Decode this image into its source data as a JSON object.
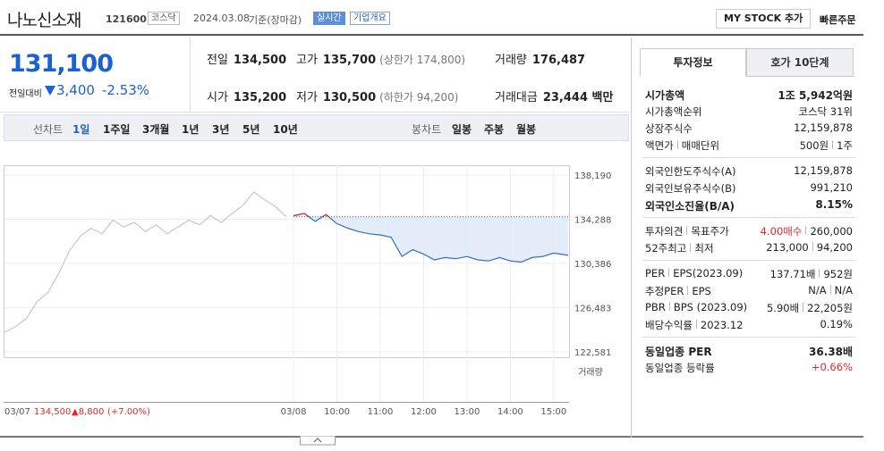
{
  "header": {
    "name": "나노신소재",
    "code": "121600",
    "market": "코스닥",
    "date": "2024.03.08",
    "basis": "기준(장마감)",
    "realtime": "실시간",
    "overview": "기업개요",
    "mystock": "MY STOCK 추가",
    "order": "빠른주문"
  },
  "price": {
    "now": "131,100",
    "change_label": "전일대비",
    "change": "3,400",
    "pct": "-2.53%"
  },
  "summary": [
    {
      "label": "전일",
      "value": "134,500"
    },
    {
      "label": "고가",
      "value": "135,700",
      "note": "(상한가 174,800)"
    },
    {
      "label": "거래량",
      "value": "176,487"
    },
    {
      "label": "시가",
      "value": "135,200"
    },
    {
      "label": "저가",
      "value": "130,500",
      "note": "(하한가 94,200)"
    },
    {
      "label": "거래대금",
      "value": "23,444 백만"
    }
  ],
  "tabs": {
    "line_label": "선차트",
    "line": [
      "1일",
      "1주일",
      "3개월",
      "1년",
      "3년",
      "5년",
      "10년"
    ],
    "candle_label": "봉차트",
    "candle": [
      "일봉",
      "주봉",
      "월봉"
    ]
  },
  "chart_data": {
    "type": "line",
    "volume_label": "거래량",
    "ylim": [
      122100,
      139060
    ],
    "yticks": [
      {
        "value": 122581,
        "label": "122,581"
      },
      {
        "value": 126483,
        "label": "126,483"
      },
      {
        "value": 130386,
        "label": "130,386"
      },
      {
        "value": 134288,
        "label": "134,288"
      },
      {
        "value": 138190,
        "label": "138,190"
      }
    ],
    "xlim": [
      -400,
      380
    ],
    "xticks": [
      {
        "value": 0,
        "label": "03/08"
      },
      {
        "value": 60,
        "label": "10:00"
      },
      {
        "value": 120,
        "label": "11:00"
      },
      {
        "value": 180,
        "label": "12:00"
      },
      {
        "value": 240,
        "label": "13:00"
      },
      {
        "value": 300,
        "label": "14:00"
      },
      {
        "value": 360,
        "label": "15:00"
      }
    ],
    "series": [
      {
        "name": "03/07",
        "color": "#c8c8c8",
        "x": [
          -400,
          -385,
          -370,
          -355,
          -340,
          -325,
          -310,
          -295,
          -280,
          -265,
          -250,
          -235,
          -220,
          -205,
          -190,
          -175,
          -160,
          -145,
          -130,
          -115,
          -100,
          -85,
          -70,
          -55,
          -40,
          -25,
          -10
        ],
        "values": [
          124300,
          124800,
          125500,
          127000,
          127800,
          129500,
          131500,
          132800,
          133500,
          133000,
          134200,
          133600,
          134000,
          133200,
          133800,
          133000,
          133600,
          134200,
          133800,
          134600,
          134000,
          134800,
          135500,
          136700,
          136000,
          135400,
          134500
        ]
      },
      {
        "name": "03/08",
        "color": "#2d6ccf",
        "up_color": "#e22926",
        "x": [
          0,
          15,
          30,
          45,
          60,
          75,
          90,
          105,
          120,
          135,
          150,
          165,
          180,
          195,
          210,
          225,
          240,
          255,
          270,
          285,
          300,
          315,
          330,
          345,
          360,
          380
        ],
        "values": [
          134600,
          134800,
          134100,
          134700,
          133900,
          133500,
          133200,
          133000,
          132900,
          132700,
          131000,
          131600,
          131200,
          130700,
          130900,
          130800,
          131000,
          130700,
          130600,
          130900,
          130600,
          130500,
          130900,
          131000,
          131300,
          131100
        ]
      }
    ],
    "footer": {
      "date": "03/07",
      "price": "134,500",
      "change": "▲8,800",
      "pct": "(+7.00%)"
    }
  },
  "info": {
    "tabs": [
      "투자정보",
      "호가 10단계"
    ],
    "groups": [
      [
        {
          "labels": [
            "시가총액"
          ],
          "values": [
            "1조 5,942억원"
          ],
          "strong": true
        },
        {
          "labels": [
            "시가총액순위"
          ],
          "values": [
            "코스닥 31위"
          ]
        },
        {
          "labels": [
            "상장주식수"
          ],
          "values": [
            "12,159,878"
          ]
        },
        {
          "labels": [
            "액면가",
            "매매단위"
          ],
          "values": [
            "500원",
            "1주"
          ]
        }
      ],
      [
        {
          "labels": [
            "외국인한도주식수(A)"
          ],
          "values": [
            "12,159,878"
          ]
        },
        {
          "labels": [
            "외국인보유주식수(B)"
          ],
          "values": [
            "991,210"
          ]
        },
        {
          "labels": [
            "외국인소진율(B/A)"
          ],
          "values": [
            "8.15%"
          ],
          "strong": true
        }
      ],
      [
        {
          "labels": [
            "투자의견",
            "목표주가"
          ],
          "values": [
            "4.00매수",
            "260,000"
          ],
          "color": "#e22926"
        },
        {
          "labels": [
            "52주최고",
            "최저"
          ],
          "values": [
            "213,000",
            "94,200"
          ]
        }
      ],
      [
        {
          "labels": [
            "PER",
            "EPS(2023.09)"
          ],
          "values": [
            "137.71배",
            "952원"
          ]
        },
        {
          "labels": [
            "추정PER",
            "EPS"
          ],
          "values": [
            "N/A",
            "N/A"
          ]
        },
        {
          "labels": [
            "PBR",
            "BPS (2023.09)"
          ],
          "values": [
            "5.90배",
            "22,205원"
          ]
        },
        {
          "labels": [
            "배당수익률",
            "2023.12"
          ],
          "values": [
            "0.19%"
          ]
        }
      ],
      [
        {
          "labels": [
            "동일업종 PER"
          ],
          "values": [
            "36.38배"
          ],
          "strong": true
        },
        {
          "labels": [
            "동일업종 등락률"
          ],
          "values": [
            "+0.66%"
          ],
          "color": "#e22926"
        }
      ]
    ]
  }
}
